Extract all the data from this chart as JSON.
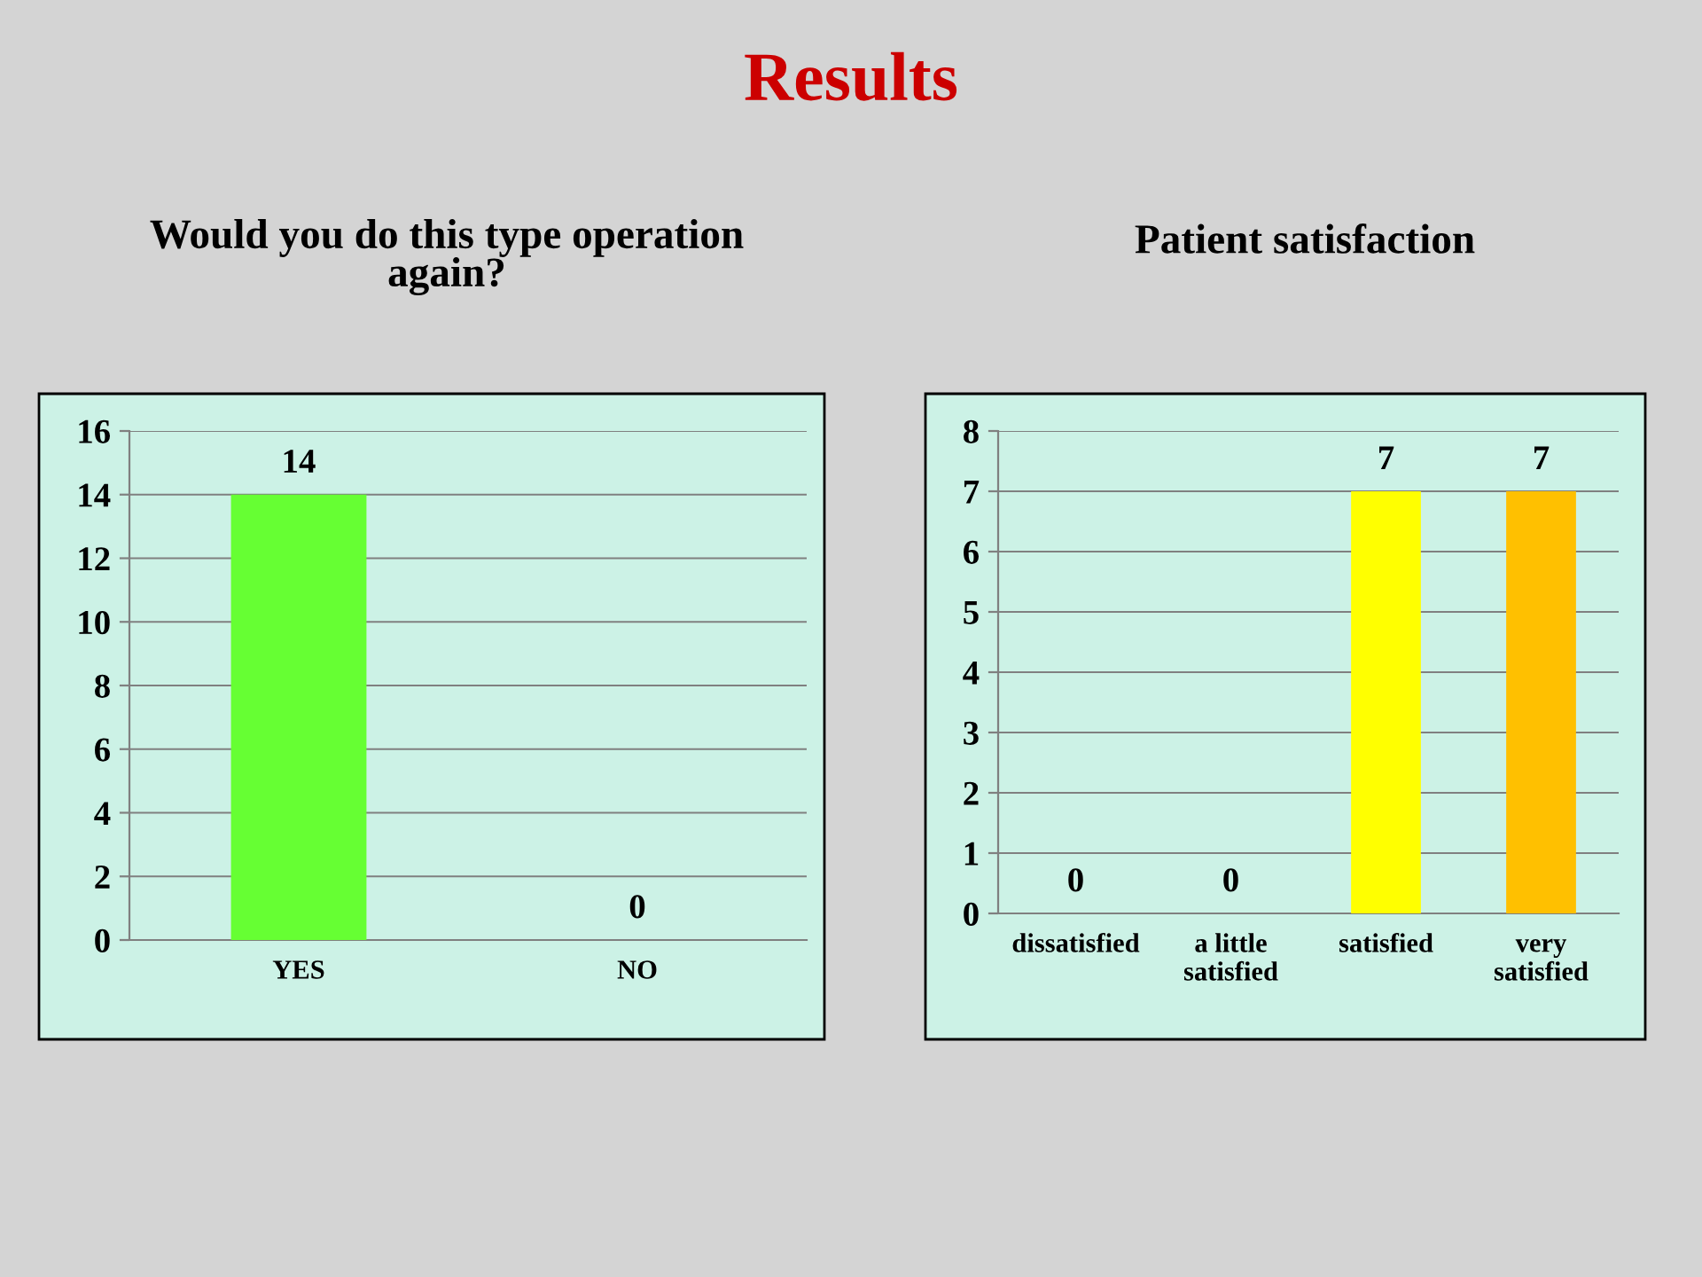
{
  "chart_data": [
    {
      "type": "bar",
      "title": "Would you do this type operation\nagain?",
      "annotations": [
        "Results"
      ],
      "categories": [
        "YES",
        "NO"
      ],
      "values": [
        14,
        0
      ],
      "colors": [
        "#66ff33",
        "#66ff33"
      ],
      "ylim": [
        0,
        16
      ],
      "yticks": [
        0,
        2,
        4,
        6,
        8,
        10,
        12,
        14,
        16
      ],
      "grid": "y",
      "data_labels": true
    },
    {
      "type": "bar",
      "title": "Patient satisfaction",
      "categories": [
        "dissatisfied",
        "a little\nsatisfied",
        "satisfied",
        "very\nsatisfied"
      ],
      "values": [
        0,
        0,
        7,
        7
      ],
      "colors": [
        "#ffff00",
        "#ffff00",
        "#ffff00",
        "#ffc000"
      ],
      "ylim": [
        0,
        8
      ],
      "yticks": [
        0,
        1,
        2,
        3,
        4,
        5,
        6,
        7,
        8
      ],
      "grid": "y",
      "data_labels": true
    }
  ]
}
